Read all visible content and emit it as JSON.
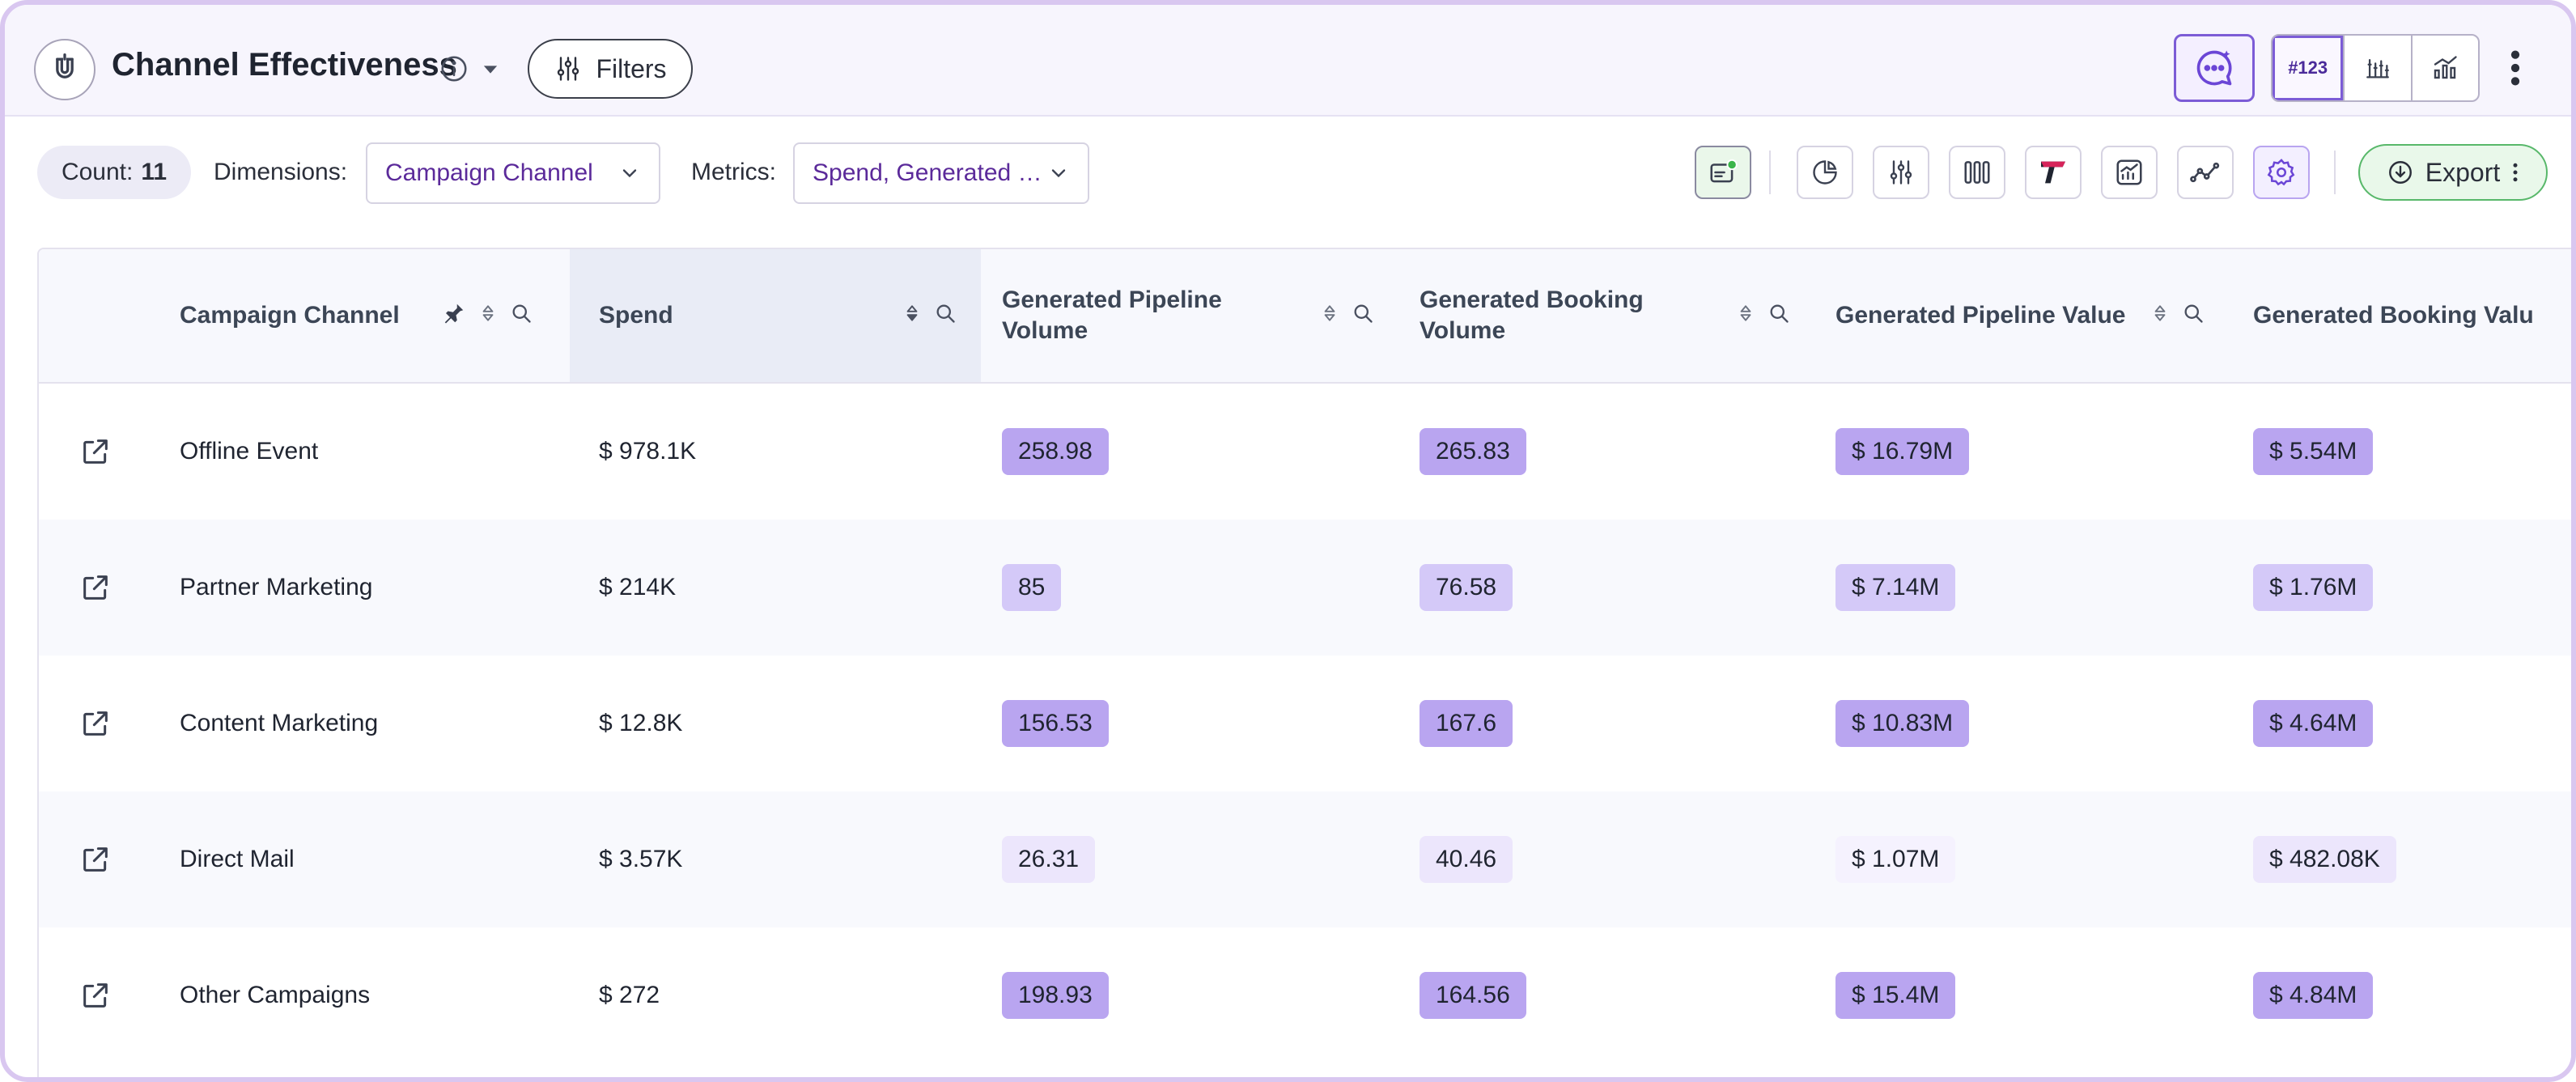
{
  "header": {
    "title": "Channel Effectiveness",
    "filters_label": "Filters",
    "view_number_label": "#123"
  },
  "toolbar": {
    "count_label": "Count:",
    "count_value": "11",
    "dimensions_label": "Dimensions:",
    "dimensions_value": "Campaign Channel",
    "metrics_label": "Metrics:",
    "metrics_value": "Spend, Generated …",
    "export_label": "Export"
  },
  "table": {
    "columns": [
      "Campaign Channel",
      "Spend",
      "Generated Pipeline Volume",
      "Generated Booking Volume",
      "Generated Pipeline Value",
      "Generated Booking Valu"
    ],
    "rows": [
      {
        "channel": "Offline Event",
        "spend": "$ 978.1K",
        "gpv": "258.98",
        "gbv": "265.83",
        "gpval": "$ 16.79M",
        "gbval": "$ 5.54M",
        "levels": [
          "high",
          "high",
          "high",
          "high"
        ]
      },
      {
        "channel": "Partner Marketing",
        "spend": "$ 214K",
        "gpv": "85",
        "gbv": "76.58",
        "gpval": "$ 7.14M",
        "gbval": "$ 1.76M",
        "levels": [
          "mid",
          "mid",
          "mid",
          "mid"
        ]
      },
      {
        "channel": "Content Marketing",
        "spend": "$ 12.8K",
        "gpv": "156.53",
        "gbv": "167.6",
        "gpval": "$ 10.83M",
        "gbval": "$ 4.64M",
        "levels": [
          "high",
          "high",
          "high",
          "high"
        ]
      },
      {
        "channel": "Direct Mail",
        "spend": "$ 3.57K",
        "gpv": "26.31",
        "gbv": "40.46",
        "gpval": "$ 1.07M",
        "gbval": "$ 482.08K",
        "levels": [
          "low",
          "low",
          "min",
          "low"
        ]
      },
      {
        "channel": "Other Campaigns",
        "spend": "$ 272",
        "gpv": "198.93",
        "gbv": "164.56",
        "gpval": "$ 15.4M",
        "gbval": "$ 4.84M",
        "levels": [
          "high",
          "high",
          "high",
          "high"
        ]
      }
    ]
  },
  "colors": {
    "accent": "#7c5cd6",
    "badge_high": "#b9a5f0",
    "badge_mid": "#d4c9f8",
    "badge_low": "#ece6fc",
    "export_green": "#58b86a"
  }
}
